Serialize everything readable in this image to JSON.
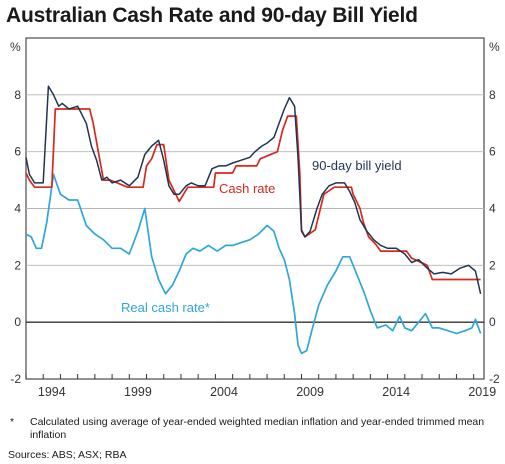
{
  "title": "Australian Cash Rate and 90-day Bill Yield",
  "footnote_marker": "*",
  "footnote_text": "Calculated using average of year-ended weighted median inflation and year-ended trimmed mean inflation",
  "sources": "Sources: ABS; ASX; RBA",
  "chart_data": {
    "type": "line",
    "title": "Australian Cash Rate and 90-day Bill Yield",
    "y_unit_left": "%",
    "y_unit_right": "%",
    "xlim": [
      1993.0,
      2019.6
    ],
    "ylim": [
      -2,
      10
    ],
    "y_ticks": [
      -2,
      0,
      2,
      4,
      6,
      8
    ],
    "y_tick_labels": [
      "-2",
      "0",
      "2",
      "4",
      "6",
      "8"
    ],
    "x_ticks": [
      1994,
      1999,
      2004,
      2009,
      2014,
      2019
    ],
    "x_tick_labels": [
      "1994",
      "1999",
      "2004",
      "2009",
      "2014",
      "2019"
    ],
    "grid": true,
    "series": [
      {
        "name": "90-day bill yield",
        "color": "#1f3552",
        "x": [
          1993.0,
          1993.2,
          1993.5,
          1994.0,
          1994.3,
          1994.6,
          1994.9,
          1995.1,
          1995.5,
          1996.0,
          1996.5,
          1996.8,
          1997.1,
          1997.4,
          1997.7,
          1998.0,
          1998.5,
          1999.0,
          1999.5,
          1999.9,
          2000.3,
          2000.7,
          2001.0,
          2001.3,
          2001.6,
          2001.9,
          2002.3,
          2002.6,
          2003.0,
          2003.4,
          2003.8,
          2004.2,
          2004.6,
          2005.0,
          2005.5,
          2006.0,
          2006.3,
          2006.7,
          2007.0,
          2007.4,
          2007.7,
          2008.0,
          2008.3,
          2008.6,
          2008.8,
          2009.0,
          2009.2,
          2009.5,
          2009.9,
          2010.2,
          2010.6,
          2011.0,
          2011.5,
          2011.8,
          2012.1,
          2012.4,
          2012.8,
          2013.2,
          2013.6,
          2014.0,
          2014.5,
          2015.0,
          2015.4,
          2015.8,
          2016.3,
          2016.7,
          2017.2,
          2017.7,
          2018.2,
          2018.7,
          2019.1,
          2019.4
        ],
        "values": [
          5.8,
          5.2,
          4.9,
          4.9,
          8.3,
          8.0,
          7.6,
          7.7,
          7.5,
          7.6,
          7.0,
          6.2,
          5.7,
          5.0,
          5.1,
          4.9,
          5.0,
          4.8,
          5.1,
          5.9,
          6.2,
          6.4,
          5.7,
          4.8,
          4.5,
          4.5,
          4.8,
          4.9,
          4.8,
          4.8,
          5.4,
          5.5,
          5.5,
          5.6,
          5.7,
          5.8,
          6.0,
          6.2,
          6.3,
          6.5,
          7.0,
          7.5,
          7.9,
          7.6,
          5.8,
          3.2,
          3.0,
          3.2,
          4.0,
          4.5,
          4.8,
          4.9,
          4.9,
          4.6,
          4.2,
          3.6,
          3.2,
          2.9,
          2.7,
          2.6,
          2.6,
          2.4,
          2.1,
          2.2,
          1.9,
          1.7,
          1.75,
          1.7,
          1.9,
          2.0,
          1.8,
          1.0
        ]
      },
      {
        "name": "Cash rate",
        "color": "#d8291e",
        "x": [
          1993.0,
          1993.2,
          1993.5,
          1994.0,
          1994.5,
          1994.7,
          1995.0,
          1995.5,
          1996.0,
          1996.7,
          1996.9,
          1997.2,
          1997.5,
          1997.9,
          1998.9,
          1999.8,
          2000.0,
          2000.3,
          2000.6,
          2001.0,
          2001.3,
          2001.5,
          2001.9,
          2002.4,
          2002.6,
          2003.9,
          2004.0,
          2005.0,
          2005.2,
          2006.4,
          2006.6,
          2007.6,
          2007.9,
          2008.2,
          2008.7,
          2008.9,
          2009.0,
          2009.2,
          2009.8,
          2010.0,
          2010.3,
          2010.9,
          2011.9,
          2012.0,
          2012.4,
          2012.6,
          2012.9,
          2013.3,
          2013.6,
          2015.1,
          2015.4,
          2016.3,
          2016.6,
          2019.4
        ],
        "values": [
          5.25,
          5.0,
          4.75,
          4.75,
          4.75,
          7.5,
          7.5,
          7.5,
          7.5,
          7.5,
          7.0,
          6.0,
          5.0,
          5.0,
          4.75,
          4.75,
          5.5,
          5.75,
          6.25,
          6.25,
          5.0,
          4.75,
          4.25,
          4.75,
          4.75,
          4.75,
          5.25,
          5.25,
          5.5,
          5.5,
          5.75,
          6.0,
          6.75,
          7.25,
          7.25,
          5.25,
          3.25,
          3.0,
          3.25,
          3.75,
          4.5,
          4.75,
          4.75,
          4.5,
          4.0,
          3.5,
          3.0,
          2.75,
          2.5,
          2.5,
          2.25,
          2.0,
          1.5,
          1.5
        ]
      },
      {
        "name": "Real cash rate*",
        "color": "#2fa6da",
        "x": [
          1993.0,
          1993.3,
          1993.6,
          1993.9,
          1994.2,
          1994.6,
          1995.0,
          1995.5,
          1996.0,
          1996.5,
          1997.0,
          1997.5,
          1998.0,
          1998.5,
          1999.0,
          1999.5,
          1999.9,
          2000.3,
          2000.7,
          2001.1,
          2001.5,
          2001.9,
          2002.3,
          2002.7,
          2003.1,
          2003.6,
          2004.1,
          2004.6,
          2005.0,
          2005.5,
          2006.0,
          2006.5,
          2007.0,
          2007.4,
          2007.7,
          2008.0,
          2008.3,
          2008.6,
          2008.8,
          2009.0,
          2009.3,
          2009.6,
          2010.0,
          2010.5,
          2011.0,
          2011.4,
          2011.8,
          2012.2,
          2012.6,
          2013.0,
          2013.4,
          2013.9,
          2014.3,
          2014.7,
          2015.0,
          2015.4,
          2015.8,
          2016.2,
          2016.6,
          2017.0,
          2017.5,
          2018.0,
          2018.5,
          2018.9,
          2019.1,
          2019.4
        ],
        "values": [
          3.1,
          3.0,
          2.6,
          2.6,
          3.5,
          5.2,
          4.5,
          4.3,
          4.3,
          3.4,
          3.1,
          2.9,
          2.6,
          2.6,
          2.4,
          3.2,
          4.0,
          2.3,
          1.5,
          1.0,
          1.3,
          1.8,
          2.4,
          2.6,
          2.5,
          2.7,
          2.5,
          2.7,
          2.7,
          2.8,
          2.9,
          3.1,
          3.4,
          3.2,
          2.6,
          2.2,
          1.5,
          0.3,
          -0.8,
          -1.1,
          -1.0,
          -0.3,
          0.6,
          1.3,
          1.8,
          2.3,
          2.3,
          1.7,
          1.1,
          0.4,
          -0.2,
          -0.1,
          -0.3,
          0.2,
          -0.2,
          -0.3,
          0.0,
          0.3,
          -0.2,
          -0.2,
          -0.3,
          -0.4,
          -0.3,
          -0.2,
          0.1,
          -0.4
        ]
      }
    ],
    "annotations": [
      {
        "text": "90-day bill yield",
        "series": "90-day bill yield"
      },
      {
        "text": "Cash rate",
        "series": "Cash rate"
      },
      {
        "text": "Real cash rate*",
        "series": "Real cash rate*"
      }
    ]
  }
}
